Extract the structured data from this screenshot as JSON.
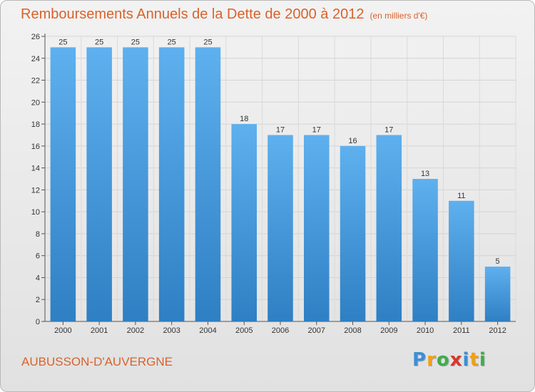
{
  "title": "Remboursements Annuels de la Dette de 2000 à 2012",
  "unit": "(en milliers d'€)",
  "commune": "AUBUSSON-D'AUVERGNE",
  "brand": {
    "letters": [
      "P",
      "r",
      "o",
      "x",
      "i",
      "t",
      "i"
    ],
    "colors": [
      "#3c8fd6",
      "#f0a019",
      "#3fae49",
      "#d9362b",
      "#3c8fd6",
      "#f0a019",
      "#3fae49"
    ]
  },
  "colors": {
    "bar": "#4f9fe0",
    "accent": "#d9622b"
  },
  "chart_data": {
    "type": "bar",
    "categories": [
      "2000",
      "2001",
      "2002",
      "2003",
      "2004",
      "2005",
      "2006",
      "2007",
      "2008",
      "2009",
      "2010",
      "2011",
      "2012"
    ],
    "values": [
      25,
      25,
      25,
      25,
      25,
      18,
      17,
      17,
      16,
      17,
      13,
      11,
      5
    ],
    "ylim": [
      0,
      26
    ],
    "yticks": [
      0,
      2,
      4,
      6,
      8,
      10,
      12,
      14,
      16,
      18,
      20,
      22,
      24,
      26
    ],
    "grid": true,
    "xlabel": "",
    "ylabel": ""
  }
}
